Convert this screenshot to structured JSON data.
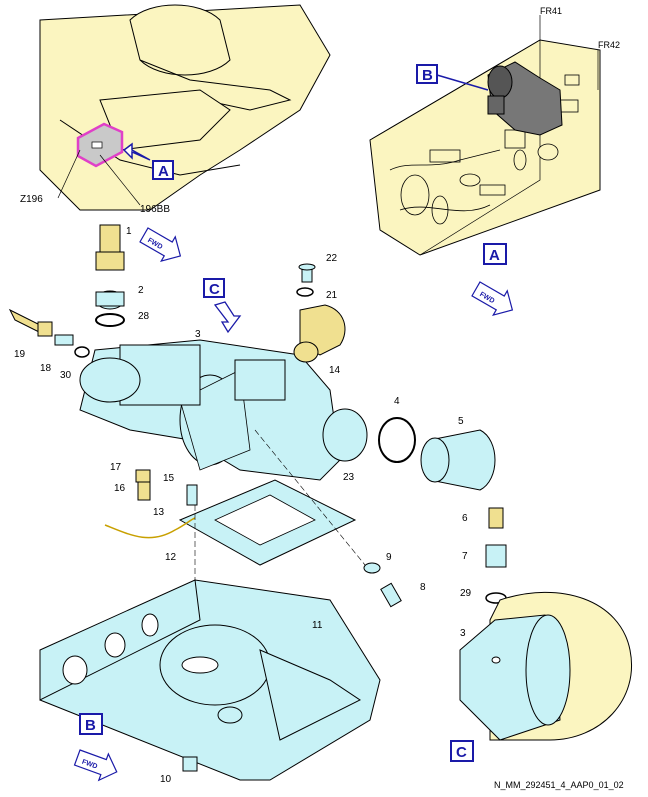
{
  "callouts": {
    "A_top": "A",
    "B_top": "B",
    "C_mid": "C",
    "A_right": "A",
    "B_bottom": "B",
    "C_bottom": "C"
  },
  "zone_labels": {
    "z196": "Z196",
    "panel": "196BB",
    "fr41": "FR41",
    "fr42": "FR42"
  },
  "fwd": "FWD",
  "parts": [
    "1",
    "2",
    "28",
    "19",
    "18",
    "30",
    "3",
    "22",
    "21",
    "14",
    "4",
    "5",
    "17",
    "16",
    "15",
    "13",
    "12",
    "23",
    "9",
    "8",
    "6",
    "7",
    "29",
    "3",
    "11",
    "10"
  ],
  "reference": "N_MM_292451_4_AAP0_01_02",
  "colors": {
    "aircraft": "#fbf5c0",
    "component": "#c8f2f6",
    "callout": "#1a1aa8",
    "highlight": "#e040c8",
    "line": "#000000"
  }
}
